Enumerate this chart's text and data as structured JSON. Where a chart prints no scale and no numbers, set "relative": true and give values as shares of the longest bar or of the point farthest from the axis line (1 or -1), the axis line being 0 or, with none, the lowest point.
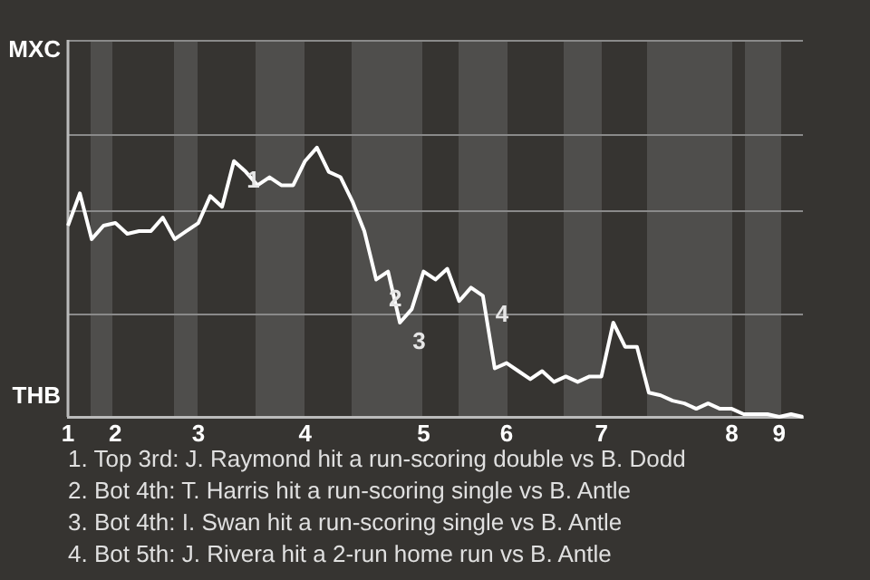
{
  "chart_data": {
    "type": "line",
    "relative": true,
    "categories": [
      "1",
      null,
      null,
      null,
      "2",
      null,
      null,
      null,
      null,
      null,
      null,
      "3",
      null,
      null,
      null,
      null,
      null,
      null,
      null,
      null,
      "4",
      null,
      null,
      null,
      null,
      null,
      null,
      null,
      null,
      null,
      "5",
      null,
      null,
      null,
      null,
      null,
      null,
      "6",
      null,
      null,
      null,
      null,
      null,
      null,
      null,
      "7",
      null,
      null,
      null,
      null,
      null,
      null,
      null,
      null,
      null,
      null,
      "8",
      null,
      null,
      null,
      "9",
      null,
      null
    ],
    "series": [
      {
        "color": "#ffffff",
        "values": [
          0.71,
          0.83,
          0.66,
          0.71,
          0.72,
          0.68,
          0.69,
          0.69,
          0.74,
          0.66,
          0.69,
          0.72,
          0.82,
          0.78,
          0.95,
          0.91,
          0.86,
          0.89,
          0.86,
          0.86,
          0.95,
          1,
          0.91,
          0.89,
          0.8,
          0.69,
          0.51,
          0.54,
          0.35,
          0.4,
          0.54,
          0.51,
          0.55,
          0.43,
          0.48,
          0.45,
          0.18,
          0.2,
          0.17,
          0.14,
          0.17,
          0.13,
          0.15,
          0.13,
          0.15,
          0.15,
          0.35,
          0.26,
          0.26,
          0.09,
          0.08,
          0.06,
          0.05,
          0.03,
          0.05,
          0.03,
          0.03,
          0.01,
          0.01,
          0.01,
          0,
          0.01,
          0
        ]
      }
    ],
    "marker": "none",
    "line_style": "solid",
    "legend": false,
    "ref_lines": [
      {
        "axis": "y",
        "value": 0.385,
        "color": "#8a8a8a"
      },
      {
        "axis": "y",
        "value": 0.77,
        "color": "#8a8a8a"
      }
    ],
    "annotations": [
      "MXC",
      "THB",
      "1",
      "2",
      "3",
      "4",
      "1. Top 3rd: J. Raymond hit a run-scoring double vs B. Dodd",
      "2. Bot 4th: T. Harris hit a run-scoring single vs B. Antle",
      "3. Bot 4th: I. Swan hit a run-scoring single vs B. Antle",
      "4. Bot 5th: J. Rivera hit a 2-run home run vs B. Antle"
    ]
  }
}
